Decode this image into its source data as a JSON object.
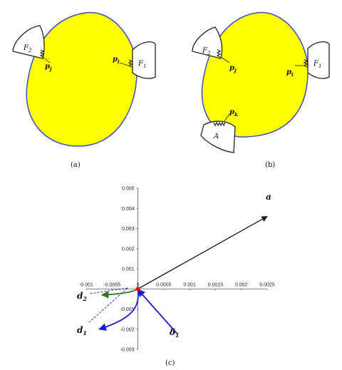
{
  "panels": {
    "a": {
      "caption": "(a)",
      "labels": {
        "f2": "F",
        "f2_sub": "2",
        "pj": "p",
        "pj_sub": "j",
        "pi": "p",
        "pi_sub": "i",
        "f1": "F",
        "f1_sub": "1"
      }
    },
    "b": {
      "caption": "(b)",
      "labels": {
        "f2": "F",
        "f2_sub": "2",
        "pj": "p",
        "pj_sub": "j",
        "pi": "p",
        "pi_sub": "i",
        "f1": "F",
        "f1_sub": "1",
        "pk": "p",
        "pk_sub": "k",
        "A": "A"
      }
    },
    "c": {
      "caption": "(c)"
    }
  },
  "colors": {
    "body_fill": "#ffff00",
    "body_outline": "#3b4fc4",
    "vector_a": "#1a1a1a",
    "vector_d1": "#1a1adc",
    "vector_d2": "#2e7d1f",
    "vector_delta1": "#1a1adc",
    "origin": "#ff0000"
  },
  "chart_data": {
    "type": "line",
    "xlim": [
      -0.001,
      0.0025
    ],
    "ylim": [
      -0.003,
      0.005
    ],
    "x_ticks": [
      {
        "v": -0.001,
        "label": "-0.001"
      },
      {
        "v": -0.0005,
        "label": "-0.0005"
      },
      {
        "v": 0,
        "label": "0"
      },
      {
        "v": 0.0005,
        "label": "0.0005"
      },
      {
        "v": 0.001,
        "label": "0.001"
      },
      {
        "v": 0.0015,
        "label": "0.0015"
      },
      {
        "v": 0.002,
        "label": "0.002"
      },
      {
        "v": 0.0025,
        "label": "0.0025"
      }
    ],
    "y_ticks": [
      {
        "v": 0.005,
        "label": "0.005"
      },
      {
        "v": 0.004,
        "label": "0.004"
      },
      {
        "v": 0.003,
        "label": "0.003"
      },
      {
        "v": 0.002,
        "label": "0.002"
      },
      {
        "v": 0.001,
        "label": "0.001"
      },
      {
        "v": -0.001,
        "label": "-0.001"
      },
      {
        "v": -0.002,
        "label": "-0.002"
      },
      {
        "v": -0.003,
        "label": "-0.003"
      }
    ],
    "vectors": [
      {
        "name": "a",
        "color": "#1a1a1a",
        "from": [
          0,
          0
        ],
        "to": [
          0.0025,
          0.0036
        ]
      },
      {
        "name": "d",
        "sub": "2",
        "color": "#2e7d1f",
        "from": [
          0,
          0
        ],
        "to": [
          -0.0007,
          -0.0003
        ]
      },
      {
        "name": "d",
        "sub": "1",
        "color": "#1a1adc",
        "from": [
          0,
          0
        ],
        "to": [
          -0.00075,
          -0.002
        ]
      },
      {
        "name": "δ",
        "sub": "1",
        "color": "#1a1adc",
        "from": [
          0.00075,
          -0.0022
        ],
        "to": [
          0.0,
          -3e-05
        ]
      }
    ]
  }
}
